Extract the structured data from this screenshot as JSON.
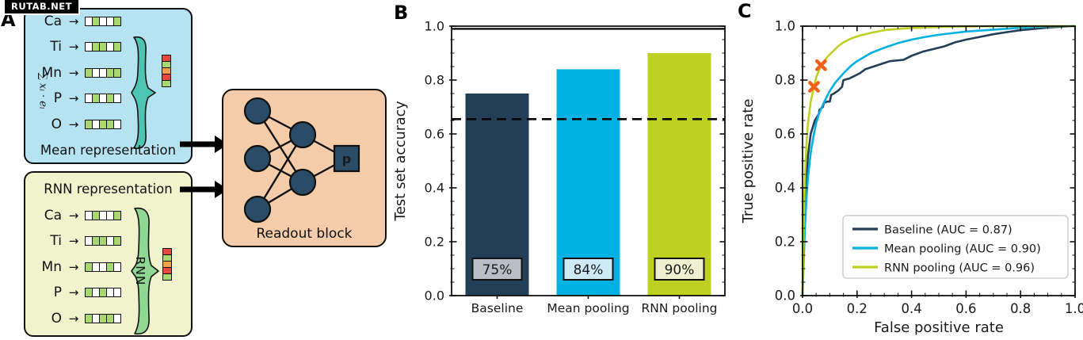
{
  "watermark": "RUTAB.NET",
  "panel_labels": {
    "a": "A",
    "b": "B",
    "c": "C"
  },
  "diagram": {
    "arrow_glyph": "→",
    "elements": [
      "Ca",
      "Ti",
      "Mn",
      "P",
      "O"
    ],
    "mean_box": {
      "title": "Mean representation",
      "brace_label": "∑ xᵢ · eᵢ"
    },
    "rnn_box": {
      "title": "RNN representation",
      "brace_label": "RNN"
    },
    "readout": {
      "title": "Readout block",
      "output_label": "p"
    },
    "cell_on_color": "#a9d870",
    "cell_off_color": "#ffffff",
    "mean_patterns": [
      [
        0,
        1,
        0,
        0,
        1
      ],
      [
        0,
        1,
        1,
        0,
        1
      ],
      [
        1,
        0,
        0,
        1,
        1
      ],
      [
        0,
        1,
        0,
        1,
        0
      ],
      [
        1,
        0,
        1,
        1,
        0
      ]
    ],
    "rnn_patterns": [
      [
        0,
        1,
        0,
        0,
        1
      ],
      [
        0,
        1,
        1,
        0,
        1
      ],
      [
        1,
        0,
        0,
        1,
        0
      ],
      [
        1,
        0,
        1,
        0,
        0
      ],
      [
        1,
        0,
        1,
        1,
        0
      ]
    ],
    "output_vector_colors": [
      "#e8493e",
      "#a9d870",
      "#f5a04a",
      "#e8493e",
      "#a9d870"
    ],
    "box_colors": {
      "mean": "#b6e3f2",
      "rnn": "#f0f3cb",
      "readout": "#f5cca9",
      "mean_brace": "#4cc6b2",
      "rnn_brace": "#90d794",
      "node": "#2b4c66"
    }
  },
  "chart_data": [
    {
      "id": "accuracy_bar",
      "type": "bar",
      "ylabel": "Test set accuracy",
      "categories": [
        "Baseline",
        "Mean pooling",
        "RNN pooling"
      ],
      "values": [
        0.75,
        0.84,
        0.9
      ],
      "bar_labels": [
        "75%",
        "84%",
        "90%"
      ],
      "colors": [
        "#233e57",
        "#00b2e3",
        "#bed122"
      ],
      "label_bg": [
        "#b7bec5",
        "#cdeaf6",
        "#eef1cf"
      ],
      "ylim": [
        0,
        1
      ],
      "yticks": [
        0.0,
        0.2,
        0.4,
        0.6,
        0.8,
        1.0
      ],
      "ytick_labels": [
        "0.0",
        "0.2",
        "0.4",
        "0.6",
        "0.8",
        "1.0"
      ],
      "minor_step": 0.05,
      "hline_solid": 0.99,
      "hline_dashed": 0.655,
      "grid": false
    },
    {
      "id": "roc",
      "type": "line",
      "xlabel": "False positive rate",
      "ylabel": "True positive rate",
      "xlim": [
        0,
        1
      ],
      "ylim": [
        0,
        1
      ],
      "xticks": [
        0.0,
        0.2,
        0.4,
        0.6,
        0.8,
        1.0
      ],
      "yticks": [
        0.0,
        0.2,
        0.4,
        0.6,
        0.8,
        1.0
      ],
      "xtick_labels": [
        "0.0",
        "0.2",
        "0.4",
        "0.6",
        "0.8",
        "1.0"
      ],
      "ytick_labels": [
        "0.0",
        "0.2",
        "0.4",
        "0.6",
        "0.8",
        "1.0"
      ],
      "minor_step": 0.05,
      "grid": false,
      "legend_position": "lower right",
      "series": [
        {
          "name": "Baseline",
          "auc": 0.87,
          "label": "Baseline (AUC = 0.87)",
          "color": "#233e57",
          "points": [
            [
              0,
              0
            ],
            [
              0.004,
              0.18
            ],
            [
              0.008,
              0.32
            ],
            [
              0.012,
              0.41
            ],
            [
              0.02,
              0.52
            ],
            [
              0.03,
              0.6
            ],
            [
              0.045,
              0.65
            ],
            [
              0.06,
              0.675
            ],
            [
              0.062,
              0.69
            ],
            [
              0.075,
              0.7
            ],
            [
              0.078,
              0.715
            ],
            [
              0.09,
              0.72
            ],
            [
              0.1,
              0.72
            ],
            [
              0.105,
              0.745
            ],
            [
              0.115,
              0.75
            ],
            [
              0.13,
              0.76
            ],
            [
              0.145,
              0.775
            ],
            [
              0.15,
              0.8
            ],
            [
              0.17,
              0.805
            ],
            [
              0.19,
              0.815
            ],
            [
              0.21,
              0.825
            ],
            [
              0.23,
              0.84
            ],
            [
              0.26,
              0.85
            ],
            [
              0.29,
              0.86
            ],
            [
              0.32,
              0.87
            ],
            [
              0.37,
              0.875
            ],
            [
              0.4,
              0.89
            ],
            [
              0.44,
              0.905
            ],
            [
              0.48,
              0.915
            ],
            [
              0.52,
              0.925
            ],
            [
              0.56,
              0.94
            ],
            [
              0.6,
              0.95
            ],
            [
              0.65,
              0.96
            ],
            [
              0.7,
              0.97
            ],
            [
              0.75,
              0.978
            ],
            [
              0.8,
              0.985
            ],
            [
              0.85,
              0.99
            ],
            [
              0.9,
              0.995
            ],
            [
              0.95,
              0.998
            ],
            [
              1,
              1
            ]
          ]
        },
        {
          "name": "Mean pooling",
          "auc": 0.9,
          "label": "Mean pooling (AUC = 0.90)",
          "color": "#00b2e3",
          "points": [
            [
              0,
              0
            ],
            [
              0.005,
              0.15
            ],
            [
              0.01,
              0.28
            ],
            [
              0.015,
              0.37
            ],
            [
              0.02,
              0.44
            ],
            [
              0.03,
              0.53
            ],
            [
              0.04,
              0.59
            ],
            [
              0.05,
              0.64
            ],
            [
              0.06,
              0.675
            ],
            [
              0.08,
              0.72
            ],
            [
              0.1,
              0.76
            ],
            [
              0.12,
              0.79
            ],
            [
              0.15,
              0.825
            ],
            [
              0.18,
              0.855
            ],
            [
              0.2,
              0.87
            ],
            [
              0.25,
              0.9
            ],
            [
              0.3,
              0.92
            ],
            [
              0.35,
              0.937
            ],
            [
              0.4,
              0.95
            ],
            [
              0.45,
              0.96
            ],
            [
              0.5,
              0.968
            ],
            [
              0.6,
              0.98
            ],
            [
              0.7,
              0.987
            ],
            [
              0.8,
              0.994
            ],
            [
              0.9,
              0.999
            ],
            [
              1,
              1
            ]
          ]
        },
        {
          "name": "RNN pooling",
          "auc": 0.96,
          "label": "RNN pooling (AUC = 0.96)",
          "color": "#bed122",
          "points": [
            [
              0,
              0
            ],
            [
              0.003,
              0.2
            ],
            [
              0.006,
              0.35
            ],
            [
              0.01,
              0.47
            ],
            [
              0.015,
              0.57
            ],
            [
              0.02,
              0.64
            ],
            [
              0.03,
              0.72
            ],
            [
              0.042,
              0.775
            ],
            [
              0.05,
              0.81
            ],
            [
              0.06,
              0.835
            ],
            [
              0.068,
              0.855
            ],
            [
              0.09,
              0.885
            ],
            [
              0.11,
              0.905
            ],
            [
              0.13,
              0.925
            ],
            [
              0.15,
              0.94
            ],
            [
              0.18,
              0.955
            ],
            [
              0.21,
              0.965
            ],
            [
              0.25,
              0.975
            ],
            [
              0.3,
              0.985
            ],
            [
              0.35,
              0.99
            ],
            [
              0.4,
              0.993
            ],
            [
              0.5,
              0.997
            ],
            [
              0.6,
              0.999
            ],
            [
              0.75,
              1
            ],
            [
              1,
              1
            ]
          ]
        }
      ],
      "markers": {
        "color": "#f2611c",
        "shape": "x",
        "points": [
          [
            0.042,
            0.775
          ],
          [
            0.068,
            0.855
          ]
        ]
      }
    }
  ]
}
